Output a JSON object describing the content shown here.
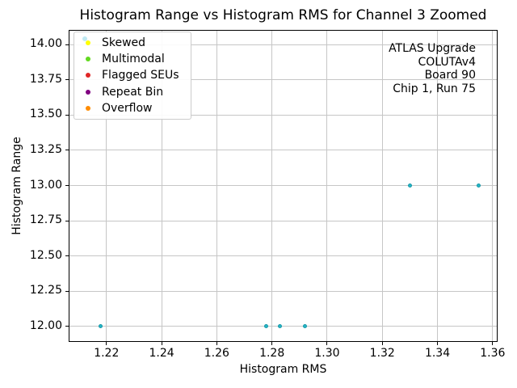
{
  "chart_data": {
    "type": "scatter",
    "title": "Histogram Range vs Histogram RMS for Channel 3 Zoomed",
    "xlabel": "Histogram RMS",
    "ylabel": "Histogram Range",
    "xlim": [
      1.2063,
      1.3618
    ],
    "ylim": [
      11.89,
      14.105
    ],
    "grid": true,
    "grid_color": "#c6c6c6",
    "legend_position": "upper-left",
    "x_ticks": [
      {
        "value": 1.22,
        "label": "1.22"
      },
      {
        "value": 1.24,
        "label": "1.24"
      },
      {
        "value": 1.26,
        "label": "1.26"
      },
      {
        "value": 1.28,
        "label": "1.28"
      },
      {
        "value": 1.3,
        "label": "1.30"
      },
      {
        "value": 1.32,
        "label": "1.32"
      },
      {
        "value": 1.34,
        "label": "1.34"
      },
      {
        "value": 1.36,
        "label": "1.36"
      }
    ],
    "y_ticks": [
      {
        "value": 12.0,
        "label": "12.00"
      },
      {
        "value": 12.25,
        "label": "12.25"
      },
      {
        "value": 12.5,
        "label": "12.50"
      },
      {
        "value": 12.75,
        "label": "12.75"
      },
      {
        "value": 13.0,
        "label": "13.00"
      },
      {
        "value": 13.25,
        "label": "13.25"
      },
      {
        "value": 13.5,
        "label": "13.50"
      },
      {
        "value": 13.75,
        "label": "13.75"
      },
      {
        "value": 14.0,
        "label": "14.00"
      }
    ],
    "series": [
      {
        "name": "histogram-points",
        "color": "#25b6c6",
        "edge_color": "#1899a9",
        "marker_size_px": 5,
        "points": [
          {
            "x": 1.218,
            "y": 12.0
          },
          {
            "x": 1.278,
            "y": 12.0
          },
          {
            "x": 1.283,
            "y": 12.0
          },
          {
            "x": 1.292,
            "y": 12.0
          },
          {
            "x": 1.33,
            "y": 13.0
          },
          {
            "x": 1.355,
            "y": 13.0
          }
        ]
      }
    ],
    "legend": {
      "entries": [
        {
          "label": "Skewed",
          "color": "#ffff00",
          "ghost_color": "#bfe9f2"
        },
        {
          "label": "Multimodal",
          "color": "#62d920"
        },
        {
          "label": "Flagged SEUs",
          "color": "#e02626"
        },
        {
          "label": "Repeat Bin",
          "color": "#800080"
        },
        {
          "label": "Overflow",
          "color": "#ff8c00"
        }
      ]
    },
    "annotation": {
      "align": "right",
      "lines": [
        "ATLAS Upgrade",
        "COLUTAv4",
        "Board 90",
        "Chip 1, Run 75"
      ]
    }
  }
}
